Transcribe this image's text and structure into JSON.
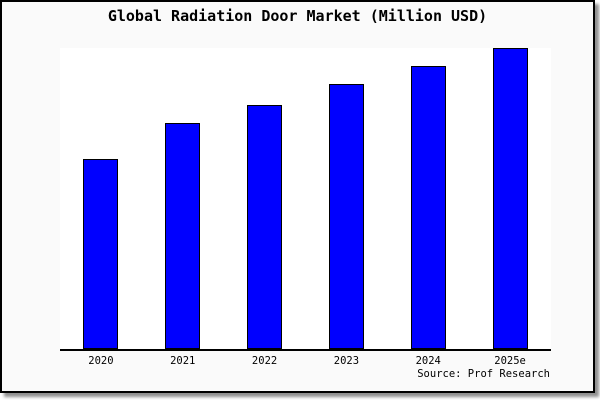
{
  "chart_data": {
    "type": "bar",
    "title": "Global Radiation Door Market (Million USD)",
    "categories": [
      "2020",
      "2021",
      "2022",
      "2023",
      "2024",
      "2025e"
    ],
    "values": [
      63,
      75,
      81,
      88,
      94,
      100
    ],
    "values_note": "y-axis has no ticks or labels; values estimated from bar heights as an index with 2025e = 100",
    "xlabel": "",
    "ylabel": "",
    "ylim": [
      0,
      100.7
    ],
    "grid": false,
    "legend": false,
    "bar_color": "#0000ff",
    "bar_edge_color": "#000000",
    "plot_background": "#ffffff",
    "page_background": "#fafafa",
    "axis_line_color": "#000000",
    "axes_shown": [
      "bottom"
    ]
  },
  "source": {
    "label": "Source: Prof Research"
  }
}
